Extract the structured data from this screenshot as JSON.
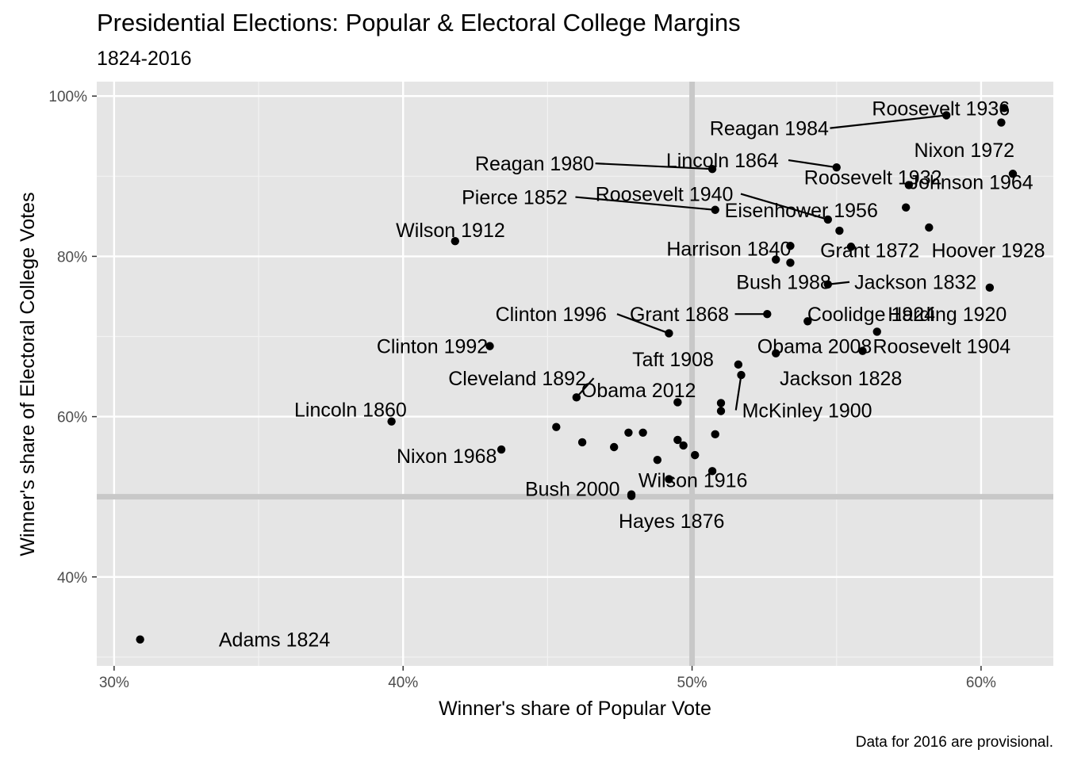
{
  "chart_data": {
    "type": "scatter",
    "title": "Presidential Elections: Popular & Electoral College Margins",
    "subtitle": "1824-2016",
    "caption": "Data for 2016 are provisional.",
    "xlabel": "Winner's share of Popular Vote",
    "ylabel": "Winner's share of Electoral College Votes",
    "xlim": [
      0.294,
      0.625
    ],
    "ylim": [
      0.289,
      1.018
    ],
    "x_ticks": [
      0.3,
      0.4,
      0.5,
      0.6
    ],
    "y_ticks": [
      0.4,
      0.6,
      0.8,
      1.0
    ],
    "x_tick_labels": [
      "30%",
      "40%",
      "50%",
      "60%"
    ],
    "y_tick_labels": [
      "40%",
      "60%",
      "80%",
      "100%"
    ],
    "reference_lines": {
      "x": 0.5,
      "y": 0.5
    },
    "grid": true,
    "colors": {
      "panel": "#e5e5e5",
      "grid_major": "#ffffff",
      "grid_minor": "#f2f2f2",
      "reference_line": "#c8c8c8",
      "point": "#000000"
    },
    "points": [
      {
        "x": 0.309,
        "y": 0.322
      },
      {
        "x": 0.396,
        "y": 0.594
      },
      {
        "x": 0.418,
        "y": 0.819
      },
      {
        "x": 0.43,
        "y": 0.688
      },
      {
        "x": 0.434,
        "y": 0.559
      },
      {
        "x": 0.46,
        "y": 0.624
      },
      {
        "x": 0.453,
        "y": 0.587
      },
      {
        "x": 0.462,
        "y": 0.568
      },
      {
        "x": 0.473,
        "y": 0.562
      },
      {
        "x": 0.478,
        "y": 0.58
      },
      {
        "x": 0.483,
        "y": 0.58
      },
      {
        "x": 0.479,
        "y": 0.503
      },
      {
        "x": 0.479,
        "y": 0.501
      },
      {
        "x": 0.488,
        "y": 0.546
      },
      {
        "x": 0.492,
        "y": 0.522
      },
      {
        "x": 0.492,
        "y": 0.704
      },
      {
        "x": 0.495,
        "y": 0.618
      },
      {
        "x": 0.495,
        "y": 0.571
      },
      {
        "x": 0.497,
        "y": 0.564
      },
      {
        "x": 0.501,
        "y": 0.552
      },
      {
        "x": 0.507,
        "y": 0.532
      },
      {
        "x": 0.507,
        "y": 0.909
      },
      {
        "x": 0.508,
        "y": 0.858
      },
      {
        "x": 0.508,
        "y": 0.578
      },
      {
        "x": 0.51,
        "y": 0.607
      },
      {
        "x": 0.51,
        "y": 0.617
      },
      {
        "x": 0.516,
        "y": 0.665
      },
      {
        "x": 0.517,
        "y": 0.652
      },
      {
        "x": 0.526,
        "y": 0.728
      },
      {
        "x": 0.529,
        "y": 0.796
      },
      {
        "x": 0.529,
        "y": 0.679
      },
      {
        "x": 0.534,
        "y": 0.813
      },
      {
        "x": 0.534,
        "y": 0.792
      },
      {
        "x": 0.54,
        "y": 0.719
      },
      {
        "x": 0.547,
        "y": 0.765
      },
      {
        "x": 0.547,
        "y": 0.846
      },
      {
        "x": 0.551,
        "y": 0.832
      },
      {
        "x": 0.555,
        "y": 0.812
      },
      {
        "x": 0.55,
        "y": 0.911
      },
      {
        "x": 0.559,
        "y": 0.682
      },
      {
        "x": 0.564,
        "y": 0.706
      },
      {
        "x": 0.574,
        "y": 0.861
      },
      {
        "x": 0.575,
        "y": 0.889
      },
      {
        "x": 0.582,
        "y": 0.836
      },
      {
        "x": 0.588,
        "y": 0.976
      },
      {
        "x": 0.603,
        "y": 0.761
      },
      {
        "x": 0.607,
        "y": 0.967
      },
      {
        "x": 0.608,
        "y": 0.985
      },
      {
        "x": 0.611,
        "y": 0.903
      }
    ],
    "labels": [
      {
        "text": "Adams 1824",
        "x": 0.309,
        "y": 0.322,
        "lx": 0.3555,
        "ly": 0.322,
        "leader": false
      },
      {
        "text": "Lincoln 1860",
        "x": 0.396,
        "y": 0.594,
        "lx": 0.3818,
        "ly": 0.609,
        "leader": false
      },
      {
        "text": "Wilson 1912",
        "x": 0.418,
        "y": 0.819,
        "lx": 0.4164,
        "ly": 0.833,
        "leader": false
      },
      {
        "text": "Clinton 1992",
        "x": 0.43,
        "y": 0.688,
        "lx": 0.4101,
        "ly": 0.688,
        "leader": false
      },
      {
        "text": "Nixon 1968",
        "x": 0.434,
        "y": 0.559,
        "lx": 0.4151,
        "ly": 0.551,
        "leader": false
      },
      {
        "text": "Cleveland 1892",
        "x": 0.46,
        "y": 0.624,
        "lx": 0.4395,
        "ly": 0.648,
        "leader": true
      },
      {
        "text": "Obama 2012",
        "x": 0.495,
        "y": 0.618,
        "lx": 0.4815,
        "ly": 0.633,
        "leader": false
      },
      {
        "text": "Bush 2000",
        "x": 0.479,
        "y": 0.503,
        "lx": 0.4586,
        "ly": 0.51,
        "leader": false
      },
      {
        "text": "Hayes 1876",
        "x": 0.479,
        "y": 0.501,
        "lx": 0.4929,
        "ly": 0.47,
        "leader": false
      },
      {
        "text": "Wilson 1916",
        "x": 0.507,
        "y": 0.532,
        "lx": 0.5003,
        "ly": 0.521,
        "leader": false
      },
      {
        "text": "Clinton 1996",
        "x": 0.492,
        "y": 0.704,
        "lx": 0.4512,
        "ly": 0.728,
        "leader": true
      },
      {
        "text": "Grant 1868",
        "x": 0.526,
        "y": 0.728,
        "lx": 0.4956,
        "ly": 0.728,
        "leader": true
      },
      {
        "text": "Taft 1908",
        "x": 0.516,
        "y": 0.665,
        "lx": 0.4934,
        "ly": 0.672,
        "leader": false
      },
      {
        "text": "McKinley 1900",
        "x": 0.517,
        "y": 0.652,
        "lx": 0.5398,
        "ly": 0.608,
        "leader": true
      },
      {
        "text": "Obama 2008",
        "x": 0.529,
        "y": 0.679,
        "lx": 0.5424,
        "ly": 0.688,
        "leader": false
      },
      {
        "text": "Jackson 1828",
        "x": 0.559,
        "y": 0.682,
        "lx": 0.5515,
        "ly": 0.648,
        "leader": false
      },
      {
        "text": "Roosevelt 1904",
        "x": 0.564,
        "y": 0.706,
        "lx": 0.5864,
        "ly": 0.688,
        "leader": false
      },
      {
        "text": "Coolidge 1924",
        "x": 0.54,
        "y": 0.719,
        "lx": 0.562,
        "ly": 0.728,
        "leader": false
      },
      {
        "text": "Harding 1920",
        "x": 0.603,
        "y": 0.761,
        "lx": 0.5883,
        "ly": 0.728,
        "leader": false
      },
      {
        "text": "Bush 1988",
        "x": 0.547,
        "y": 0.765,
        "lx": 0.5317,
        "ly": 0.768,
        "leader": false
      },
      {
        "text": "Jackson 1832",
        "x": 0.547,
        "y": 0.765,
        "lx": 0.5773,
        "ly": 0.768,
        "leader": true
      },
      {
        "text": "Harrison 1840",
        "x": 0.534,
        "y": 0.813,
        "lx": 0.5127,
        "ly": 0.81,
        "leader": false
      },
      {
        "text": "Grant 1872",
        "x": 0.555,
        "y": 0.812,
        "lx": 0.5615,
        "ly": 0.808,
        "leader": false
      },
      {
        "text": "Hoover 1928",
        "x": 0.582,
        "y": 0.836,
        "lx": 0.6025,
        "ly": 0.808,
        "leader": false
      },
      {
        "text": "Pierce 1852",
        "x": 0.508,
        "y": 0.858,
        "lx": 0.4386,
        "ly": 0.874,
        "leader": true
      },
      {
        "text": "Roosevelt 1940",
        "x": 0.547,
        "y": 0.846,
        "lx": 0.4904,
        "ly": 0.878,
        "leader": true
      },
      {
        "text": "Eisenhower 1956",
        "x": 0.551,
        "y": 0.832,
        "lx": 0.5378,
        "ly": 0.858,
        "leader": false
      },
      {
        "text": "Reagan 1980",
        "x": 0.507,
        "y": 0.909,
        "lx": 0.4455,
        "ly": 0.916,
        "leader": true
      },
      {
        "text": "Lincoln 1864",
        "x": 0.55,
        "y": 0.911,
        "lx": 0.5105,
        "ly": 0.92,
        "leader": true
      },
      {
        "text": "Roosevelt 1932",
        "x": 0.575,
        "y": 0.889,
        "lx": 0.5626,
        "ly": 0.899,
        "leader": false
      },
      {
        "text": "Johnson 1964",
        "x": 0.611,
        "y": 0.903,
        "lx": 0.5965,
        "ly": 0.893,
        "leader": false
      },
      {
        "text": "Nixon 1972",
        "x": 0.607,
        "y": 0.967,
        "lx": 0.5942,
        "ly": 0.933,
        "leader": false
      },
      {
        "text": "Reagan 1984",
        "x": 0.588,
        "y": 0.976,
        "lx": 0.5267,
        "ly": 0.96,
        "leader": true
      },
      {
        "text": "Roosevelt 1936",
        "x": 0.608,
        "y": 0.985,
        "lx": 0.5861,
        "ly": 0.985,
        "leader": false
      }
    ]
  }
}
